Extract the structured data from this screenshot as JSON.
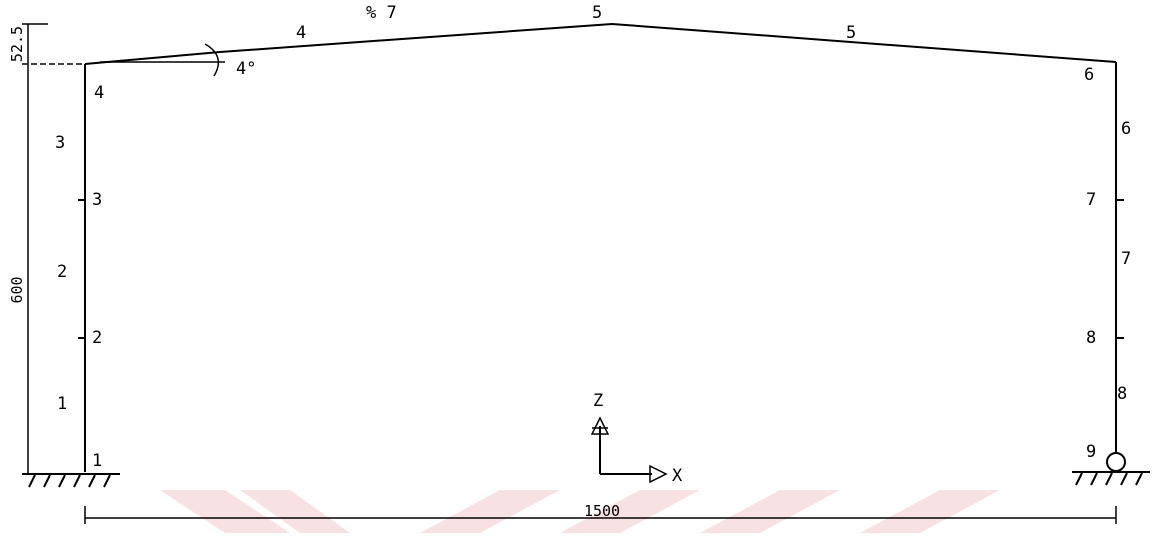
{
  "diagram": {
    "slope": {
      "percent_label": "% 7",
      "angle_label": "4°"
    },
    "dimensions": {
      "eave_height": "600",
      "rise": "52.5",
      "span": "1500"
    },
    "axes": {
      "x_label": "X",
      "z_label": "Z"
    },
    "left_column": {
      "node_labels": [
        "1",
        "2",
        "3",
        "4"
      ],
      "element_labels": [
        "1",
        "2",
        "3"
      ]
    },
    "rafters": {
      "node_labels": [
        "5"
      ],
      "element_labels": [
        "4",
        "5"
      ]
    },
    "right_column": {
      "node_labels": [
        "6",
        "7",
        "8",
        "9"
      ],
      "element_labels": [
        "6",
        "7",
        "8"
      ]
    },
    "supports": {
      "left": "fixed",
      "right": "pinned"
    },
    "colors": {
      "line": "#000000",
      "watermark": "#f3c9cc"
    }
  }
}
